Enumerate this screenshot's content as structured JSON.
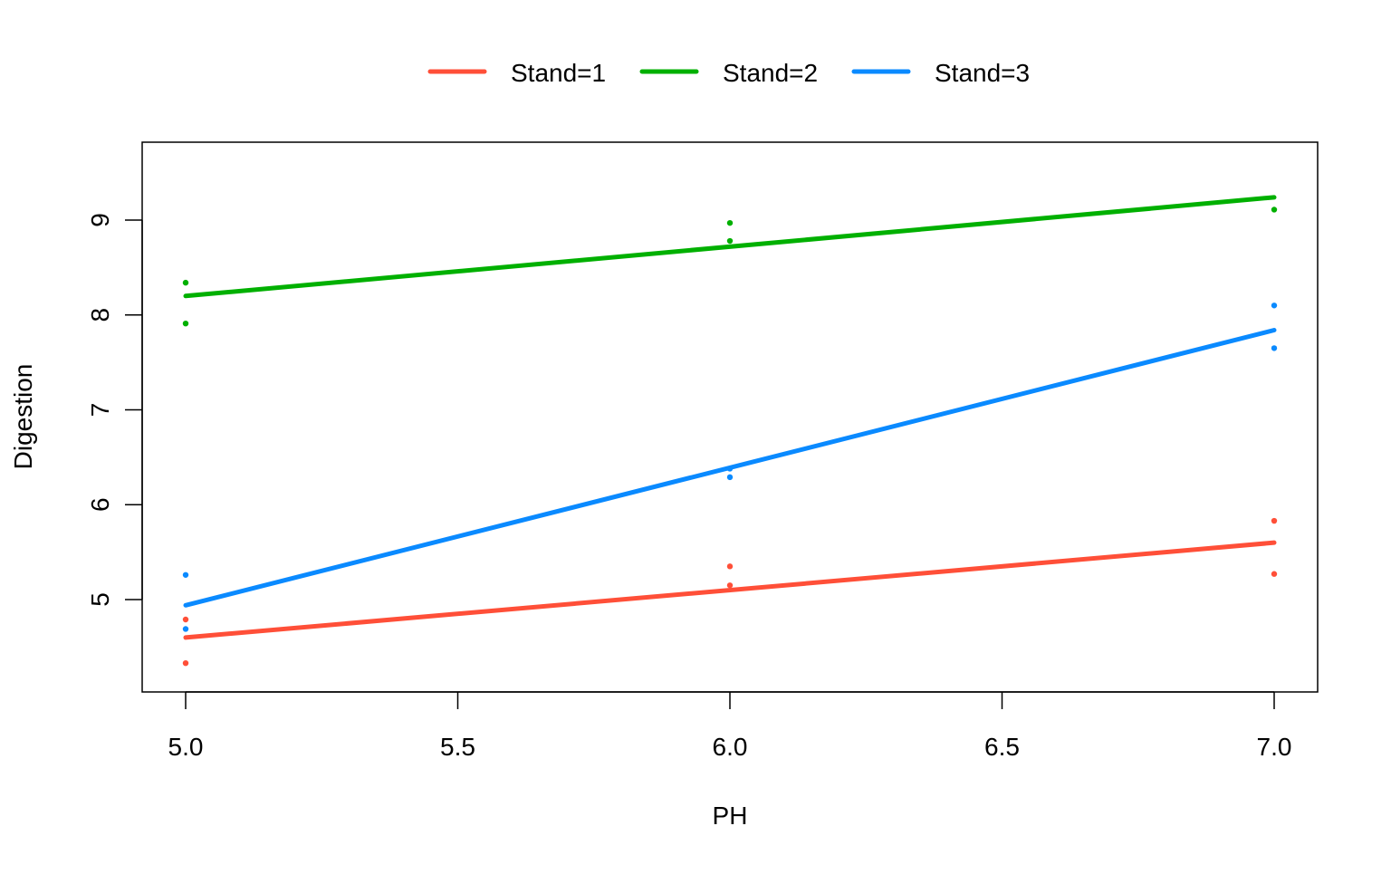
{
  "chart_data": {
    "type": "scatter",
    "title": "",
    "xlabel": "PH",
    "ylabel": "Digestion",
    "xlim": [
      4.92,
      7.08
    ],
    "ylim": [
      4.03,
      9.83
    ],
    "xticks": [
      5.0,
      5.5,
      6.0,
      6.5,
      7.0
    ],
    "xtick_labels": [
      "5.0",
      "5.5",
      "6.0",
      "6.5",
      "7.0"
    ],
    "yticks": [
      5,
      6,
      7,
      8,
      9
    ],
    "ytick_labels": [
      "5",
      "6",
      "7",
      "8",
      "9"
    ],
    "legend_position": "top",
    "grid": false,
    "series": [
      {
        "name": "Stand=1",
        "color": "#FF4F38",
        "points": [
          [
            5,
            4.79
          ],
          [
            5,
            4.33
          ],
          [
            6,
            5.35
          ],
          [
            6,
            5.15
          ],
          [
            7,
            5.83
          ],
          [
            7,
            5.27
          ]
        ],
        "fit": [
          [
            5,
            4.6
          ],
          [
            7,
            5.6
          ]
        ]
      },
      {
        "name": "Stand=2",
        "color": "#00B000",
        "points": [
          [
            5,
            8.34
          ],
          [
            5,
            7.91
          ],
          [
            6,
            8.97
          ],
          [
            6,
            8.78
          ],
          [
            7,
            9.11
          ]
        ],
        "fit": [
          [
            5,
            8.2
          ],
          [
            7,
            9.24
          ]
        ]
      },
      {
        "name": "Stand=3",
        "color": "#0A8AFF",
        "points": [
          [
            5,
            5.26
          ],
          [
            5,
            4.69
          ],
          [
            6,
            6.38
          ],
          [
            6,
            6.29
          ],
          [
            7,
            8.1
          ],
          [
            7,
            7.65
          ]
        ],
        "fit": [
          [
            5,
            4.94
          ],
          [
            7,
            7.84
          ]
        ]
      }
    ]
  }
}
